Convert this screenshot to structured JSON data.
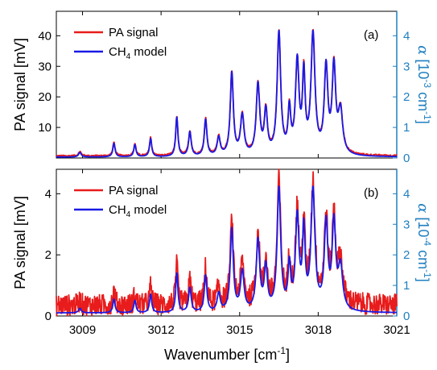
{
  "chart_data": [
    {
      "type": "line",
      "panel_label": "(a)",
      "ylabel": "PA signal",
      "ylabel_unit": "[mV]",
      "right_ylabel_symbol": "α",
      "right_ylabel_pre": "[10",
      "right_ylabel_exp": "-3",
      "right_ylabel_post": " cm",
      "right_ylabel_post_exp": "-1",
      "right_ylabel_close": "]",
      "xlim": [
        3008,
        3021
      ],
      "ylim": [
        0,
        48
      ],
      "right_ylim": [
        0,
        4.8
      ],
      "yticks": [
        10,
        20,
        30,
        40
      ],
      "right_yticks": [
        0,
        1,
        2,
        3,
        4
      ],
      "legend": {
        "position": "top-left",
        "entries": [
          "PA signal",
          "CH",
          "model"
        ],
        "sub": "4"
      },
      "series": [
        {
          "name": "PA signal",
          "color": "#e81c1c",
          "noise": 0.3,
          "baseline": 0.6
        },
        {
          "name": "CH4 model",
          "color": "#1a1ae6",
          "noise": 0.0,
          "baseline": 0.3
        }
      ],
      "peaks": [
        [
          3008.9,
          1.5,
          0.06
        ],
        [
          3010.2,
          4.5,
          0.05
        ],
        [
          3011.0,
          4.0,
          0.05
        ],
        [
          3011.6,
          6.0,
          0.05
        ],
        [
          3012.6,
          13.0,
          0.05
        ],
        [
          3013.1,
          8.0,
          0.06
        ],
        [
          3013.7,
          12.0,
          0.06
        ],
        [
          3014.2,
          6.0,
          0.07
        ],
        [
          3014.7,
          27.0,
          0.07
        ],
        [
          3015.1,
          13.0,
          0.08
        ],
        [
          3015.7,
          23.0,
          0.08
        ],
        [
          3016.0,
          14.0,
          0.07
        ],
        [
          3016.5,
          40.0,
          0.08
        ],
        [
          3016.9,
          14.0,
          0.06
        ],
        [
          3017.2,
          30.0,
          0.08
        ],
        [
          3017.45,
          25.0,
          0.06
        ],
        [
          3017.8,
          39.0,
          0.09
        ],
        [
          3018.3,
          28.0,
          0.08
        ],
        [
          3018.6,
          28.0,
          0.08
        ],
        [
          3018.85,
          14.0,
          0.1
        ]
      ]
    },
    {
      "type": "line",
      "panel_label": "(b)",
      "ylabel": "PA signal",
      "ylabel_unit": "[mV]",
      "right_ylabel_symbol": "α",
      "right_ylabel_pre": "[10",
      "right_ylabel_exp": "-4",
      "right_ylabel_post": " cm",
      "right_ylabel_post_exp": "-1",
      "right_ylabel_close": "]",
      "xlim": [
        3008,
        3021
      ],
      "ylim": [
        0,
        4.8
      ],
      "right_ylim": [
        0,
        4.8
      ],
      "yticks": [
        0,
        2,
        4
      ],
      "right_yticks": [
        0,
        1,
        2,
        3,
        4
      ],
      "legend": {
        "position": "top-left",
        "entries": [
          "PA signal",
          "CH",
          "model"
        ],
        "sub": "4"
      },
      "series": [
        {
          "name": "PA signal",
          "color": "#e81c1c",
          "noise": 0.35,
          "baseline": 0.35
        },
        {
          "name": "CH4 model",
          "color": "#1a1ae6",
          "noise": 0.0,
          "baseline": 0.1
        }
      ],
      "peaks": [
        [
          3008.9,
          0.15,
          0.06
        ],
        [
          3010.2,
          0.45,
          0.05
        ],
        [
          3011.0,
          0.4,
          0.05
        ],
        [
          3011.6,
          0.6,
          0.05
        ],
        [
          3012.6,
          1.3,
          0.05
        ],
        [
          3013.1,
          0.8,
          0.06
        ],
        [
          3013.7,
          1.2,
          0.06
        ],
        [
          3014.2,
          0.6,
          0.07
        ],
        [
          3014.7,
          2.7,
          0.07
        ],
        [
          3015.1,
          1.3,
          0.08
        ],
        [
          3015.7,
          2.3,
          0.08
        ],
        [
          3016.0,
          1.4,
          0.07
        ],
        [
          3016.5,
          4.0,
          0.08
        ],
        [
          3016.9,
          1.4,
          0.06
        ],
        [
          3017.2,
          3.0,
          0.08
        ],
        [
          3017.45,
          2.5,
          0.06
        ],
        [
          3017.8,
          3.9,
          0.09
        ],
        [
          3018.3,
          2.8,
          0.08
        ],
        [
          3018.6,
          2.8,
          0.08
        ],
        [
          3018.85,
          1.4,
          0.1
        ]
      ]
    }
  ],
  "xticks": [
    3009,
    3012,
    3015,
    3018,
    3021
  ],
  "xlabel": "Wavenumber",
  "xlabel_unit_pre": "[cm",
  "xlabel_unit_exp": "-1",
  "xlabel_unit_close": "]",
  "colors": {
    "axis": "#000000",
    "right_axis": "#1f7fc0",
    "pa": "#e81c1c",
    "model": "#1a1ae6"
  }
}
